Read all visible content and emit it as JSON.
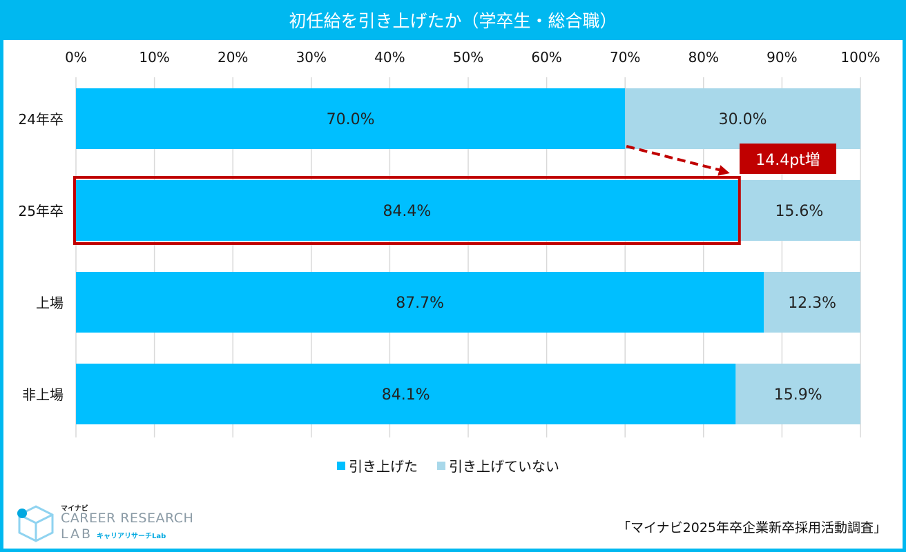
{
  "header": {
    "title": "初任給を引き上げたか（学卒生・総合職）"
  },
  "chart_data": {
    "type": "bar",
    "orientation": "horizontal",
    "stacked": true,
    "categories": [
      "24年卒",
      "25年卒",
      "上場",
      "非上場"
    ],
    "series": [
      {
        "name": "引き上げた",
        "values": [
          70.0,
          84.4,
          87.7,
          84.1
        ],
        "labels": [
          "70.0%",
          "84.4%",
          "87.7%",
          "84.1%"
        ],
        "color": "#00bfff"
      },
      {
        "name": "引き上げていない",
        "values": [
          30.0,
          15.6,
          12.3,
          15.9
        ],
        "labels": [
          "30.0%",
          "15.6%",
          "12.3%",
          "15.9%"
        ],
        "color": "#a8d8ea"
      }
    ],
    "xlim": [
      0,
      100
    ],
    "xticks": [
      "0%",
      "10%",
      "20%",
      "30%",
      "40%",
      "50%",
      "60%",
      "70%",
      "80%",
      "90%",
      "100%"
    ],
    "grid": true,
    "legend_position": "bottom",
    "annotation": {
      "text": "14.4pt増",
      "from": "24年卒",
      "to": "25年卒",
      "color": "#c00000",
      "highlight": "25年卒"
    }
  },
  "footer": {
    "source": "「マイナビ2025年卒企業新卒採用活動調査」",
    "logo_brand": "マイナビ",
    "logo_line1": "CAREER RESEARCH",
    "logo_line2": "LAB",
    "logo_sub": "キャリアリサーチLab"
  }
}
